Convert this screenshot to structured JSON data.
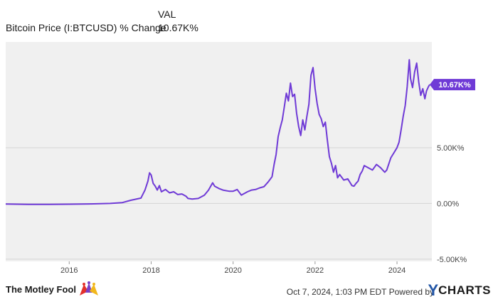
{
  "legend": {
    "column_header": "VAL",
    "series_name": "Bitcoin Price (I:BTCUSD) % Change",
    "series_value": "10.67K%"
  },
  "chart_data": {
    "type": "line",
    "series": [
      {
        "name": "Bitcoin Price (I:BTCUSD) % Change",
        "color": "#6f3ad6",
        "current_label": "10.67K%",
        "points": [
          [
            2014.45,
            -0.05
          ],
          [
            2015.0,
            -0.08
          ],
          [
            2015.5,
            -0.09
          ],
          [
            2016.0,
            -0.07
          ],
          [
            2016.5,
            -0.04
          ],
          [
            2017.0,
            0.0
          ],
          [
            2017.3,
            0.08
          ],
          [
            2017.5,
            0.28
          ],
          [
            2017.75,
            0.48
          ],
          [
            2017.85,
            1.2
          ],
          [
            2017.92,
            2.0
          ],
          [
            2017.96,
            2.75
          ],
          [
            2018.0,
            2.55
          ],
          [
            2018.05,
            1.8
          ],
          [
            2018.1,
            1.55
          ],
          [
            2018.15,
            1.2
          ],
          [
            2018.2,
            1.6
          ],
          [
            2018.25,
            1.05
          ],
          [
            2018.35,
            1.25
          ],
          [
            2018.45,
            0.95
          ],
          [
            2018.55,
            1.05
          ],
          [
            2018.65,
            0.8
          ],
          [
            2018.75,
            0.85
          ],
          [
            2018.85,
            0.65
          ],
          [
            2018.9,
            0.45
          ],
          [
            2019.0,
            0.4
          ],
          [
            2019.15,
            0.45
          ],
          [
            2019.3,
            0.75
          ],
          [
            2019.4,
            1.2
          ],
          [
            2019.5,
            1.85
          ],
          [
            2019.55,
            1.55
          ],
          [
            2019.65,
            1.35
          ],
          [
            2019.75,
            1.2
          ],
          [
            2019.9,
            1.1
          ],
          [
            2020.0,
            1.1
          ],
          [
            2020.1,
            1.25
          ],
          [
            2020.2,
            0.75
          ],
          [
            2020.25,
            0.85
          ],
          [
            2020.35,
            1.05
          ],
          [
            2020.45,
            1.2
          ],
          [
            2020.55,
            1.25
          ],
          [
            2020.65,
            1.4
          ],
          [
            2020.75,
            1.5
          ],
          [
            2020.85,
            1.9
          ],
          [
            2020.95,
            2.4
          ],
          [
            2021.0,
            3.5
          ],
          [
            2021.05,
            4.4
          ],
          [
            2021.1,
            6.0
          ],
          [
            2021.15,
            6.8
          ],
          [
            2021.2,
            7.5
          ],
          [
            2021.25,
            8.7
          ],
          [
            2021.3,
            9.9
          ],
          [
            2021.35,
            9.2
          ],
          [
            2021.4,
            10.8
          ],
          [
            2021.45,
            9.6
          ],
          [
            2021.5,
            9.8
          ],
          [
            2021.55,
            8.1
          ],
          [
            2021.6,
            6.9
          ],
          [
            2021.65,
            6.1
          ],
          [
            2021.7,
            7.5
          ],
          [
            2021.75,
            6.6
          ],
          [
            2021.8,
            7.8
          ],
          [
            2021.85,
            8.9
          ],
          [
            2021.9,
            11.5
          ],
          [
            2021.95,
            12.2
          ],
          [
            2022.0,
            10.3
          ],
          [
            2022.05,
            9.0
          ],
          [
            2022.1,
            8.0
          ],
          [
            2022.15,
            7.6
          ],
          [
            2022.2,
            6.9
          ],
          [
            2022.25,
            7.3
          ],
          [
            2022.3,
            5.7
          ],
          [
            2022.35,
            4.2
          ],
          [
            2022.4,
            3.6
          ],
          [
            2022.45,
            2.8
          ],
          [
            2022.5,
            3.4
          ],
          [
            2022.55,
            2.3
          ],
          [
            2022.6,
            2.6
          ],
          [
            2022.7,
            2.1
          ],
          [
            2022.8,
            2.2
          ],
          [
            2022.85,
            1.9
          ],
          [
            2022.9,
            1.6
          ],
          [
            2022.95,
            1.55
          ],
          [
            2023.0,
            1.8
          ],
          [
            2023.05,
            2.0
          ],
          [
            2023.1,
            2.6
          ],
          [
            2023.15,
            2.9
          ],
          [
            2023.2,
            3.4
          ],
          [
            2023.3,
            3.2
          ],
          [
            2023.4,
            3.0
          ],
          [
            2023.5,
            3.5
          ],
          [
            2023.6,
            3.2
          ],
          [
            2023.7,
            2.8
          ],
          [
            2023.75,
            3.0
          ],
          [
            2023.85,
            4.1
          ],
          [
            2023.9,
            4.4
          ],
          [
            2023.95,
            4.7
          ],
          [
            2024.0,
            5.0
          ],
          [
            2024.05,
            5.5
          ],
          [
            2024.1,
            6.6
          ],
          [
            2024.15,
            7.8
          ],
          [
            2024.2,
            8.8
          ],
          [
            2024.25,
            10.5
          ],
          [
            2024.3,
            12.9
          ],
          [
            2024.33,
            11.2
          ],
          [
            2024.38,
            10.4
          ],
          [
            2024.43,
            11.8
          ],
          [
            2024.48,
            12.6
          ],
          [
            2024.53,
            10.9
          ],
          [
            2024.58,
            9.7
          ],
          [
            2024.63,
            10.3
          ],
          [
            2024.68,
            9.4
          ],
          [
            2024.72,
            10.1
          ],
          [
            2024.77,
            10.5
          ],
          [
            2024.8,
            10.67
          ]
        ]
      }
    ],
    "xlim": [
      2014.45,
      2024.85
    ],
    "ylim": [
      -5.2,
      14.5
    ],
    "x_ticks": [
      2016,
      2018,
      2020,
      2022,
      2024
    ],
    "x_tick_labels": [
      "2016",
      "2018",
      "2020",
      "2022",
      "2024"
    ],
    "y_ticks": [
      -5,
      0,
      5
    ],
    "y_tick_labels": [
      "-5.00K%",
      "0.00%",
      "5.00K%"
    ],
    "grid": "horizontal",
    "background": "#f0f0f0",
    "y_axis_side": "right"
  },
  "footer": {
    "brand": "The Motley Fool",
    "credit": "Oct 7, 2024, 1:03 PM EDT  Powered by",
    "ycharts_y": "Y",
    "ycharts_rest": "CHARTS"
  }
}
